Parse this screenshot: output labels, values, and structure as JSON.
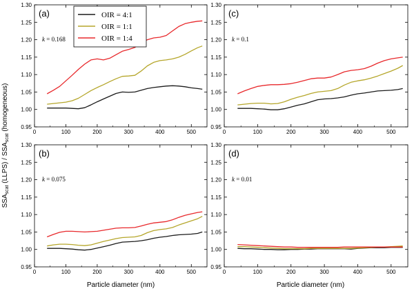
{
  "ylabel_parts": {
    "a": "SSA",
    "b": "scat",
    "c": " (LLPS) / SSA",
    "d": "scat",
    "e": " (homogeneous)"
  },
  "xlabel": "Particle diameter (nm)",
  "legend": [
    "OIR = 4:1",
    "OIR = 1:1",
    "OIR = 1:4"
  ],
  "colors": {
    "OIR = 4:1": "#1a1a1a",
    "OIR = 1:1": "#b5a62a",
    "OIR = 1:4": "#e8282b"
  },
  "chart_data": [
    {
      "type": "line",
      "panel": "(a)",
      "k_label": "k",
      "k_value": "= 0.168",
      "xlim": [
        0,
        550
      ],
      "ylim": [
        0.95,
        1.3
      ],
      "xticks": [
        0,
        100,
        200,
        300,
        400,
        500
      ],
      "yticks": [
        "0.95",
        "1.00",
        "1.05",
        "1.10",
        "1.15",
        "1.20",
        "1.25",
        "1.30"
      ],
      "x": [
        40,
        60,
        80,
        100,
        120,
        140,
        160,
        180,
        200,
        220,
        240,
        260,
        280,
        300,
        320,
        340,
        360,
        380,
        400,
        420,
        440,
        460,
        480,
        500,
        520,
        535
      ],
      "series": [
        {
          "name": "OIR = 4:1",
          "values": [
            1.004,
            1.004,
            1.004,
            1.004,
            1.003,
            1.002,
            1.005,
            1.013,
            1.022,
            1.03,
            1.038,
            1.046,
            1.05,
            1.049,
            1.05,
            1.055,
            1.06,
            1.063,
            1.065,
            1.067,
            1.068,
            1.067,
            1.065,
            1.062,
            1.06,
            1.058
          ]
        },
        {
          "name": "OIR = 1:1",
          "values": [
            1.015,
            1.017,
            1.019,
            1.021,
            1.025,
            1.032,
            1.043,
            1.054,
            1.063,
            1.071,
            1.08,
            1.088,
            1.095,
            1.096,
            1.098,
            1.11,
            1.125,
            1.135,
            1.14,
            1.142,
            1.145,
            1.15,
            1.158,
            1.168,
            1.177,
            1.182
          ]
        },
        {
          "name": "OIR = 1:4",
          "values": [
            1.045,
            1.055,
            1.066,
            1.082,
            1.098,
            1.115,
            1.13,
            1.142,
            1.145,
            1.142,
            1.147,
            1.157,
            1.167,
            1.172,
            1.178,
            1.19,
            1.2,
            1.205,
            1.207,
            1.212,
            1.225,
            1.238,
            1.246,
            1.25,
            1.253,
            1.254
          ]
        }
      ]
    },
    {
      "type": "line",
      "panel": "(c)",
      "k_label": "k",
      "k_value": "= 0.1",
      "xlim": [
        0,
        550
      ],
      "ylim": [
        0.95,
        1.3
      ],
      "xticks": [
        0,
        100,
        200,
        300,
        400,
        500
      ],
      "yticks": [
        "0.95",
        "1.00",
        "1.05",
        "1.10",
        "1.15",
        "1.20",
        "1.25",
        "1.30"
      ],
      "x": [
        40,
        60,
        80,
        100,
        120,
        140,
        160,
        180,
        200,
        220,
        240,
        260,
        280,
        300,
        320,
        340,
        360,
        380,
        400,
        420,
        440,
        460,
        480,
        500,
        520,
        535
      ],
      "series": [
        {
          "name": "OIR = 4:1",
          "values": [
            1.003,
            1.003,
            1.003,
            1.002,
            1.001,
            0.999,
            0.999,
            1.002,
            1.007,
            1.012,
            1.016,
            1.022,
            1.028,
            1.03,
            1.031,
            1.033,
            1.036,
            1.041,
            1.045,
            1.047,
            1.05,
            1.053,
            1.054,
            1.055,
            1.057,
            1.06
          ]
        },
        {
          "name": "OIR = 1:1",
          "values": [
            1.013,
            1.015,
            1.017,
            1.018,
            1.018,
            1.016,
            1.017,
            1.022,
            1.029,
            1.035,
            1.04,
            1.046,
            1.05,
            1.052,
            1.054,
            1.06,
            1.07,
            1.078,
            1.082,
            1.085,
            1.09,
            1.096,
            1.103,
            1.11,
            1.118,
            1.126
          ]
        },
        {
          "name": "OIR = 1:4",
          "values": [
            1.045,
            1.053,
            1.06,
            1.066,
            1.069,
            1.071,
            1.071,
            1.072,
            1.074,
            1.078,
            1.083,
            1.088,
            1.09,
            1.09,
            1.093,
            1.1,
            1.108,
            1.112,
            1.114,
            1.117,
            1.124,
            1.133,
            1.14,
            1.145,
            1.148,
            1.15
          ]
        }
      ]
    },
    {
      "type": "line",
      "panel": "(b)",
      "k_label": "k",
      "k_value": "= 0.075",
      "xlim": [
        0,
        550
      ],
      "ylim": [
        0.95,
        1.3
      ],
      "xticks": [
        0,
        100,
        200,
        300,
        400,
        500
      ],
      "yticks": [
        "0.95",
        "1.00",
        "1.05",
        "1.10",
        "1.15",
        "1.20",
        "1.25",
        "1.30"
      ],
      "x": [
        40,
        60,
        80,
        100,
        120,
        140,
        160,
        180,
        200,
        220,
        240,
        260,
        280,
        300,
        320,
        340,
        360,
        380,
        400,
        420,
        440,
        460,
        480,
        500,
        520,
        535
      ],
      "series": [
        {
          "name": "OIR = 4:1",
          "values": [
            1.003,
            1.003,
            1.003,
            1.002,
            1.001,
            0.999,
            0.998,
            1.0,
            1.004,
            1.008,
            1.012,
            1.017,
            1.021,
            1.022,
            1.023,
            1.025,
            1.028,
            1.032,
            1.035,
            1.037,
            1.04,
            1.042,
            1.043,
            1.044,
            1.046,
            1.05
          ]
        },
        {
          "name": "OIR = 1:1",
          "values": [
            1.01,
            1.013,
            1.015,
            1.015,
            1.014,
            1.012,
            1.011,
            1.013,
            1.018,
            1.023,
            1.027,
            1.031,
            1.034,
            1.035,
            1.036,
            1.04,
            1.048,
            1.054,
            1.057,
            1.059,
            1.063,
            1.07,
            1.076,
            1.082,
            1.088,
            1.095
          ]
        },
        {
          "name": "OIR = 1:4",
          "values": [
            1.036,
            1.043,
            1.049,
            1.052,
            1.052,
            1.051,
            1.05,
            1.051,
            1.052,
            1.055,
            1.058,
            1.061,
            1.062,
            1.062,
            1.063,
            1.067,
            1.072,
            1.076,
            1.078,
            1.08,
            1.085,
            1.092,
            1.098,
            1.102,
            1.106,
            1.108
          ]
        }
      ]
    },
    {
      "type": "line",
      "panel": "(d)",
      "k_label": "k",
      "k_value": "= 0.01",
      "xlim": [
        0,
        550
      ],
      "ylim": [
        0.95,
        1.3
      ],
      "xticks": [
        0,
        100,
        200,
        300,
        400,
        500
      ],
      "yticks": [
        "0.95",
        "1.00",
        "1.05",
        "1.10",
        "1.15",
        "1.20",
        "1.25",
        "1.30"
      ],
      "x": [
        40,
        60,
        80,
        100,
        120,
        140,
        160,
        180,
        200,
        220,
        240,
        260,
        280,
        300,
        320,
        340,
        360,
        380,
        400,
        420,
        440,
        460,
        480,
        500,
        520,
        535
      ],
      "series": [
        {
          "name": "OIR = 4:1",
          "values": [
            1.003,
            1.002,
            1.002,
            1.001,
            1.0,
            1.0,
            0.999,
            0.999,
            1.0,
            1.0,
            1.001,
            1.001,
            1.002,
            1.002,
            1.002,
            1.002,
            1.002,
            1.001,
            1.003,
            1.004,
            1.005,
            1.005,
            1.005,
            1.006,
            1.006,
            1.006
          ]
        },
        {
          "name": "OIR = 1:1",
          "values": [
            1.008,
            1.008,
            1.007,
            1.006,
            1.005,
            1.004,
            1.003,
            1.002,
            1.002,
            1.002,
            1.002,
            1.003,
            1.003,
            1.003,
            1.003,
            1.003,
            1.003,
            1.003,
            1.004,
            1.005,
            1.006,
            1.007,
            1.007,
            1.008,
            1.009,
            1.01
          ]
        },
        {
          "name": "OIR = 1:4",
          "values": [
            1.014,
            1.013,
            1.012,
            1.011,
            1.01,
            1.009,
            1.008,
            1.007,
            1.007,
            1.006,
            1.006,
            1.006,
            1.006,
            1.006,
            1.006,
            1.006,
            1.007,
            1.007,
            1.007,
            1.007,
            1.007,
            1.007,
            1.007,
            1.007,
            1.007,
            1.007
          ]
        }
      ]
    }
  ]
}
